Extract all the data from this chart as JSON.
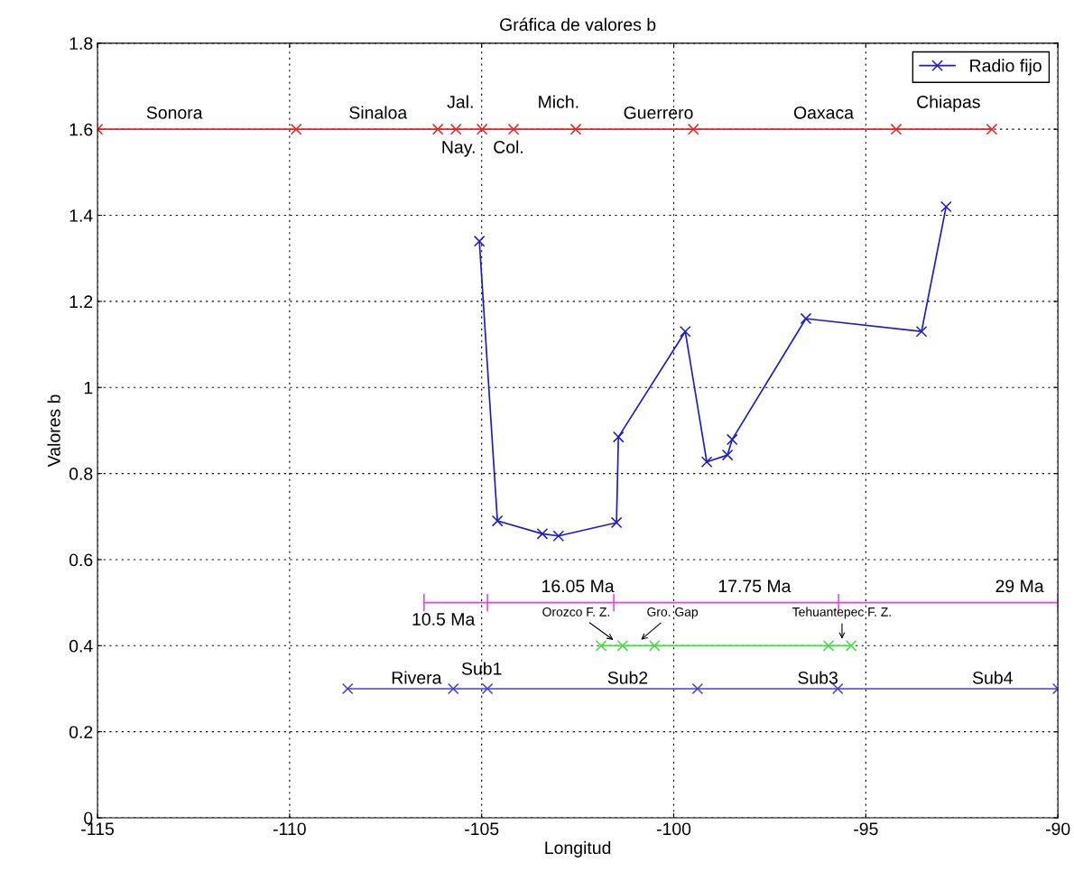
{
  "chart_data": {
    "type": "line",
    "title": "Gráfica de valores b",
    "xlabel": "Longitud",
    "ylabel": "Valores b",
    "xlim": [
      -115,
      -90
    ],
    "xticks": [
      -115,
      -110,
      -105,
      -100,
      -95,
      -90
    ],
    "ylim": [
      0,
      1.8
    ],
    "yticks": [
      0,
      0.2,
      0.4,
      0.6,
      0.8,
      1,
      1.2,
      1.4,
      1.6,
      1.8
    ],
    "grid": true,
    "legend": "top right",
    "line_style": "solid",
    "series": [
      {
        "name": "Radio fijo",
        "color": "#1a1acc",
        "marker": "cross",
        "x": [
          -105.06,
          -104.59,
          -103.42,
          -103.0,
          -101.49,
          -101.44,
          -99.7,
          -99.14,
          -98.6,
          -98.48,
          -96.56,
          -93.55,
          -92.91
        ],
        "values": [
          1.34,
          0.69,
          0.66,
          0.655,
          0.686,
          0.885,
          1.13,
          0.827,
          0.843,
          0.879,
          1.16,
          1.13,
          1.42
        ]
      },
      {
        "color": "#e02828",
        "marker": "cross",
        "x": [
          -115,
          -109.83,
          -106.14,
          -105.67,
          -104.99,
          -104.17,
          -102.55,
          -99.49,
          -94.21,
          -91.72
        ],
        "values": [
          1.6,
          1.6,
          1.6,
          1.6,
          1.6,
          1.6,
          1.6,
          1.6,
          1.6,
          1.6
        ]
      },
      {
        "color": "#e040e0",
        "x": [
          -106.5,
          -104.85,
          -101.56,
          -95.71,
          -90
        ],
        "values": [
          0.5,
          0.5,
          0.5,
          0.5,
          0.5
        ]
      },
      {
        "color": "#40dd40",
        "marker": "cross",
        "x": [
          -101.89,
          -101.33,
          -100.5,
          -95.97,
          -95.38
        ],
        "values": [
          0.4,
          0.4,
          0.4,
          0.4,
          0.4
        ]
      },
      {
        "color": "#4040cc",
        "marker": "cross",
        "x": [
          -108.49,
          -105.74,
          -104.85,
          -99.38,
          -95.73,
          -90
        ],
        "values": [
          0.3,
          0.3,
          0.3,
          0.3,
          0.3,
          0.3
        ]
      }
    ],
    "annotations": [
      "Sonora",
      "Sinaloa",
      "Jal.",
      "Nay.",
      "Col.",
      "Mich.",
      "Guerrero",
      "Oaxaca",
      "Chiapas",
      "16.05 Ma",
      "17.75 Ma",
      "29 Ma",
      "10.5 Ma",
      "Rivera",
      "Sub1",
      "Sub2",
      "Sub3",
      "Sub4",
      {
        "text": "Orozco F. Z.",
        "x": -101.52,
        "y": 0.41
      },
      {
        "text": "Gro. Gap",
        "x": -100.9,
        "y": 0.41
      },
      {
        "text": "Tehuantepec F. Z.",
        "x": -95.62,
        "y": 0.41
      }
    ]
  }
}
